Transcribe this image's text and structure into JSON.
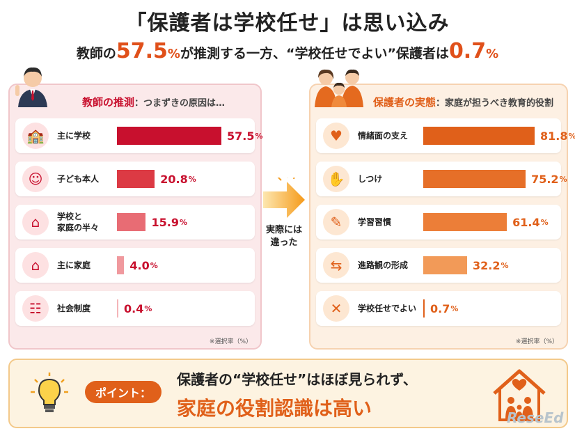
{
  "title": "「保護者は学校任せ」は思い込み",
  "subtitle": {
    "pre": "教師の",
    "teacher_value": "57.5",
    "pct1": "%",
    "mid": "が推測する一方、“学校任せでよい”保護者は",
    "parent_value": "0.7",
    "pct2": "%"
  },
  "left_panel": {
    "title": "教師の推測",
    "title_sub": "：つまずきの原因は…",
    "note": "※選択率（%）"
  },
  "right_panel": {
    "title": "保護者の実態",
    "title_sub": "：家庭が担うべき教育的役割",
    "note": "※選択率（%）"
  },
  "arrow_text": [
    "実際には",
    "違った"
  ],
  "point": {
    "badge": "ポイント：",
    "line1": "保護者の“学校任せ”はほぼ見られず、",
    "line2": "家庭の役割認識は高い"
  },
  "watermark": "ReseEd",
  "icons": {
    "left": [
      "school-icon",
      "child-icon",
      "home-school-icon",
      "home-icon",
      "people-icon"
    ],
    "right": [
      "heart-hand-icon",
      "handshake-icon",
      "book-icon",
      "signpost-icon",
      "school-x-icon"
    ]
  },
  "colors": {
    "left_bars": [
      "#c8102e",
      "#dc3a44",
      "#e86c74",
      "#f0999e",
      "#f4b5b8"
    ],
    "right_bars": [
      "#e0601a",
      "#e66f28",
      "#ec7e38",
      "#f29a58",
      "#e0601a"
    ],
    "accent": "#e0501a"
  },
  "chart_data": [
    {
      "type": "bar",
      "orientation": "horizontal",
      "title": "教師の推測：つまずきの原因は…",
      "categories": [
        "主に学校",
        "子ども本人",
        "学校と家庭の半々",
        "主に家庭",
        "社会制度"
      ],
      "values": [
        57.5,
        20.8,
        15.9,
        4.0,
        0.4
      ],
      "value_labels": [
        "57.5",
        "20.8",
        "15.9",
        "4.0",
        "0.4"
      ],
      "unit": "%",
      "note": "※選択率（%）"
    },
    {
      "type": "bar",
      "orientation": "horizontal",
      "title": "保護者の実態：家庭が担うべき教育的役割",
      "categories": [
        "情緒面の支え",
        "しつけ",
        "学習習慣",
        "進路観の形成",
        "学校任せでよい"
      ],
      "values": [
        81.8,
        75.2,
        61.4,
        32.2,
        0.7
      ],
      "value_labels": [
        "81.8",
        "75.2",
        "61.4",
        "32.2",
        "0.7"
      ],
      "unit": "%",
      "note": "※選択率（%）"
    }
  ]
}
